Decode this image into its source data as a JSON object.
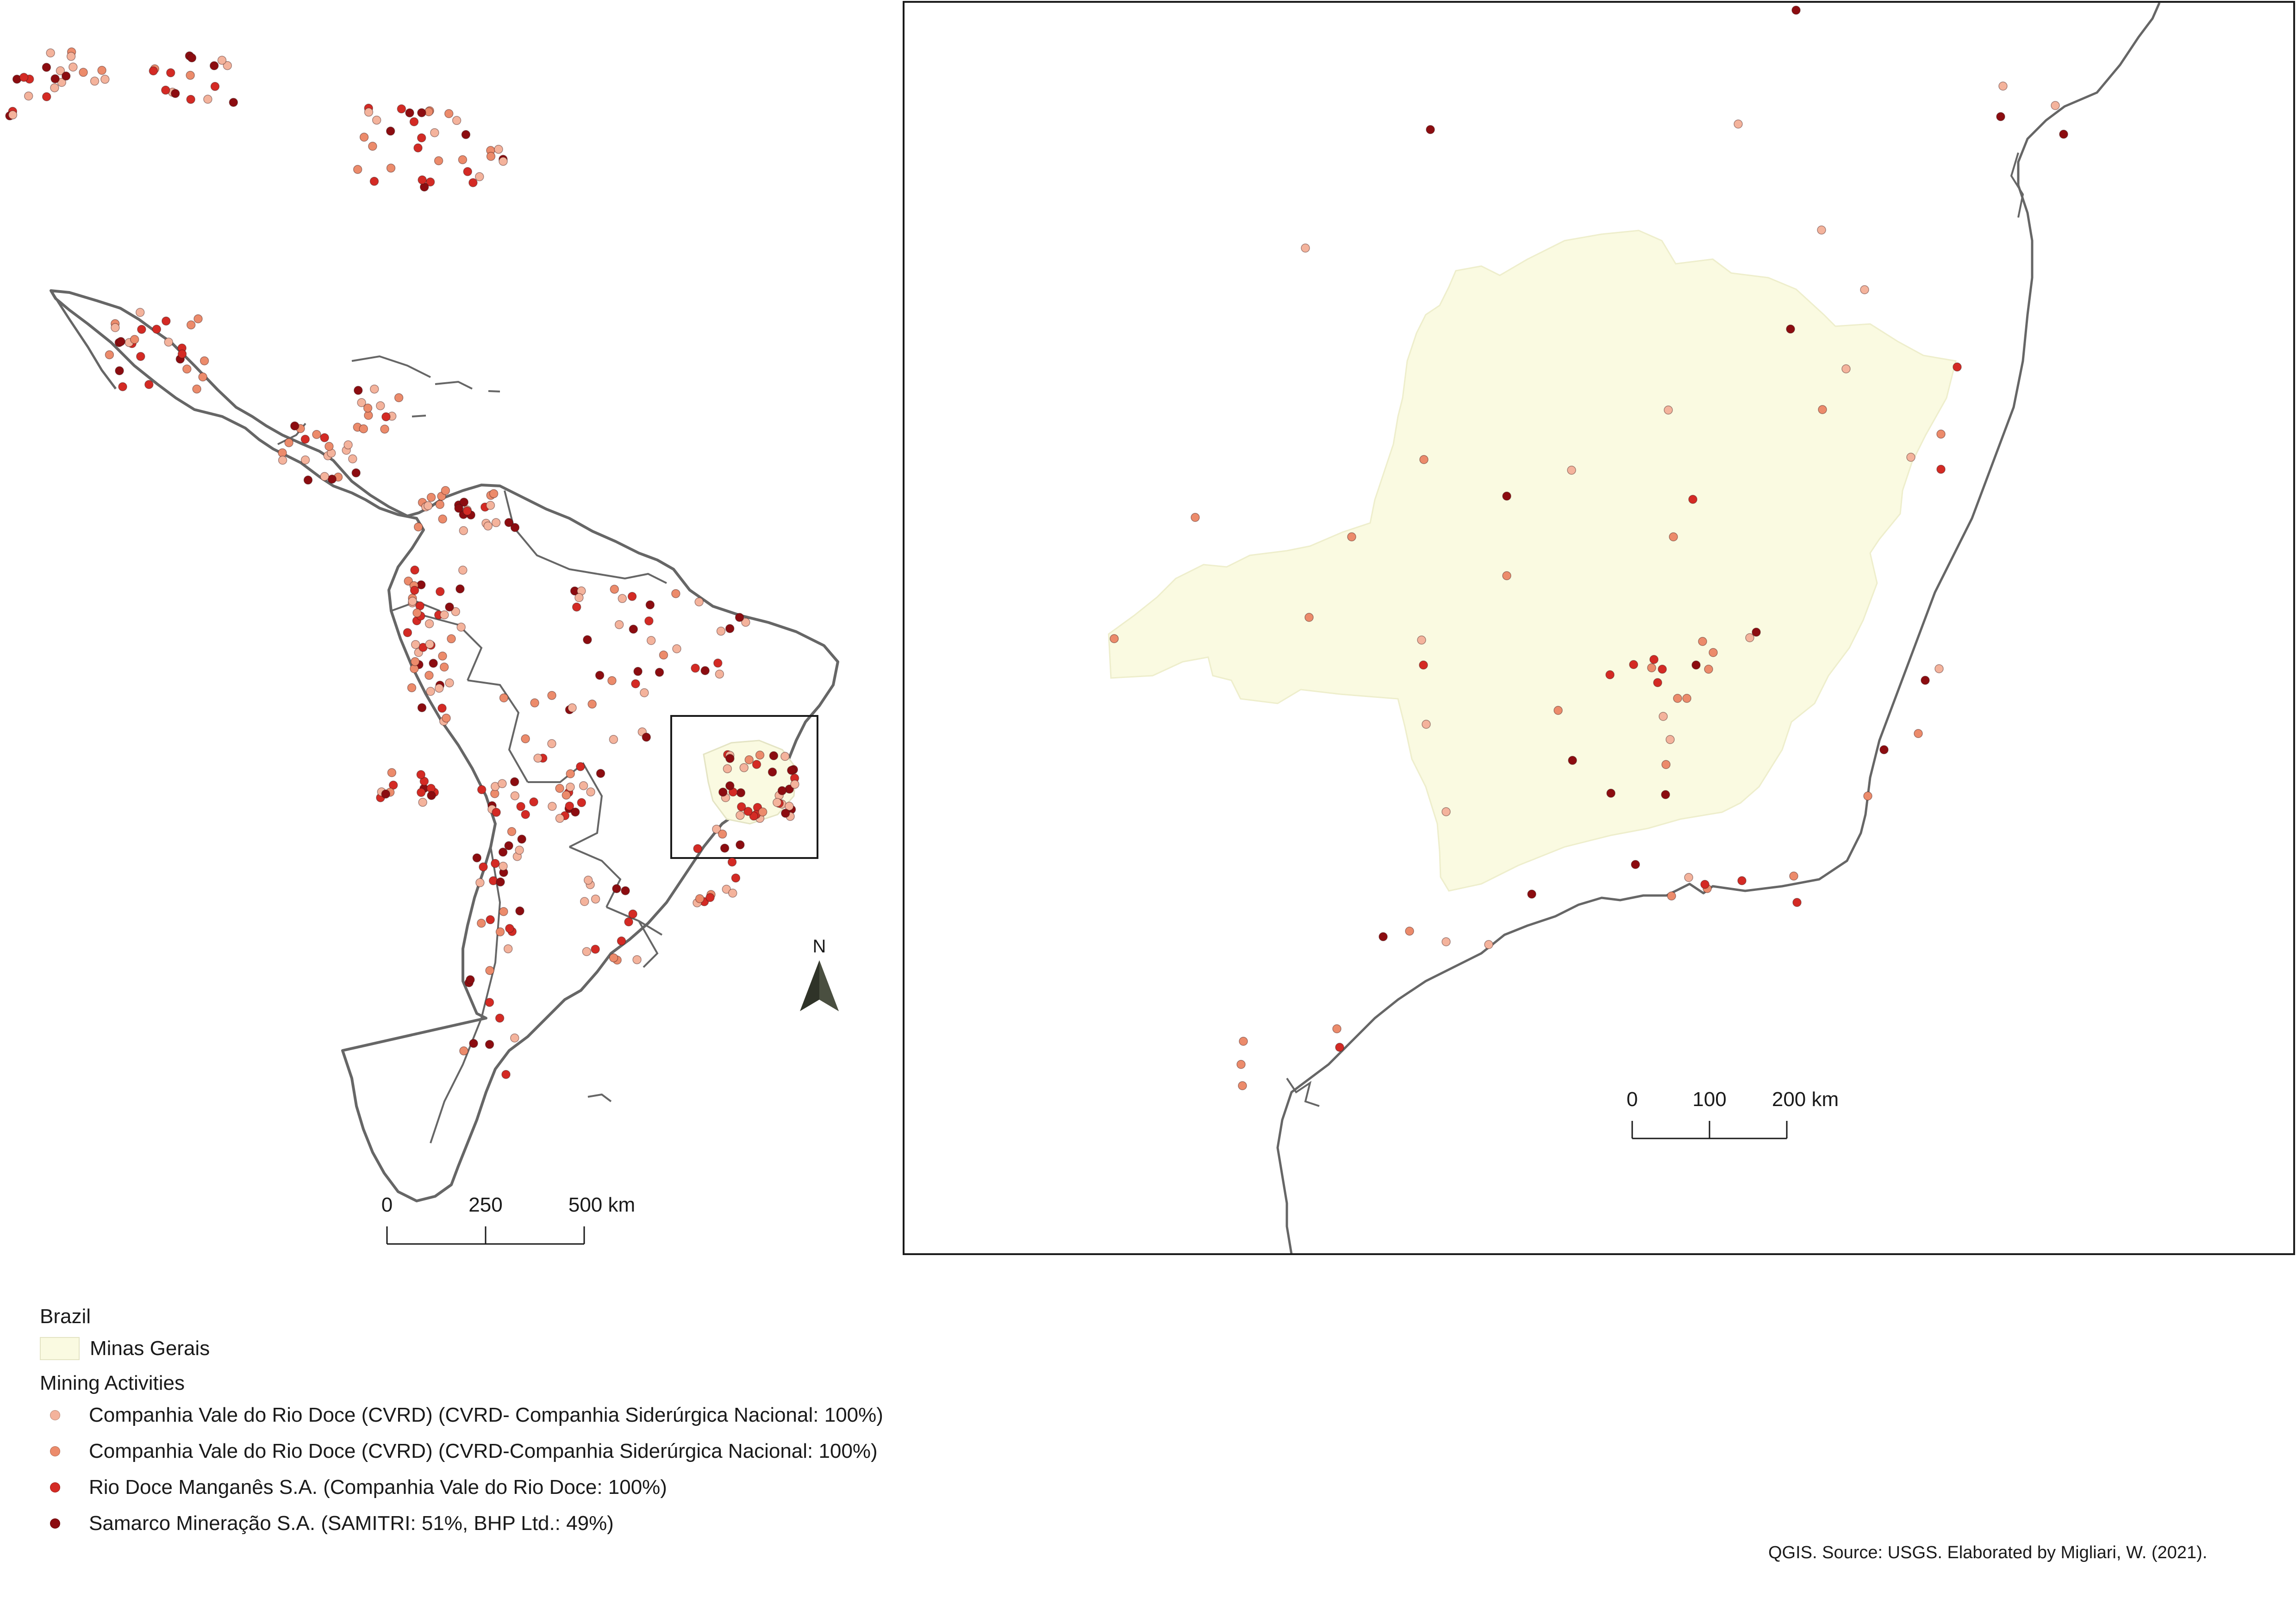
{
  "map": {
    "overview": {
      "north_arrow_label": "N",
      "scale_bar": {
        "labels": [
          "0",
          "250",
          "500 km"
        ]
      }
    },
    "inset": {
      "scale_bar": {
        "labels": [
          "0",
          "100",
          "200 km"
        ]
      }
    }
  },
  "legend": {
    "boundary_heading": "Brazil",
    "state_label": "Minas Gerais",
    "state_fill": "#fafae1",
    "mining_heading": "Mining Activities",
    "categories": [
      {
        "label": "Companhia Vale do Rio Doce (CVRD) (CVRD- Companhia Siderúrgica Nacional: 100%)",
        "color": "#f4b39c"
      },
      {
        "label": "Companhia Vale do Rio Doce (CVRD) (CVRD-Companhia Siderúrgica Nacional: 100%)",
        "color": "#ec8b6b"
      },
      {
        "label": "Rio Doce Manganês S.A. (Companhia Vale do Rio Doce: 100%)",
        "color": "#d42a24"
      },
      {
        "label": "Samarco Mineração S.A. (SAMITRI: 51%, BHP Ltd.: 49%)",
        "color": "#8c0c10"
      }
    ]
  },
  "credit": "QGIS. Source: USGS. Elaborated by Migliari, W. (2021)."
}
